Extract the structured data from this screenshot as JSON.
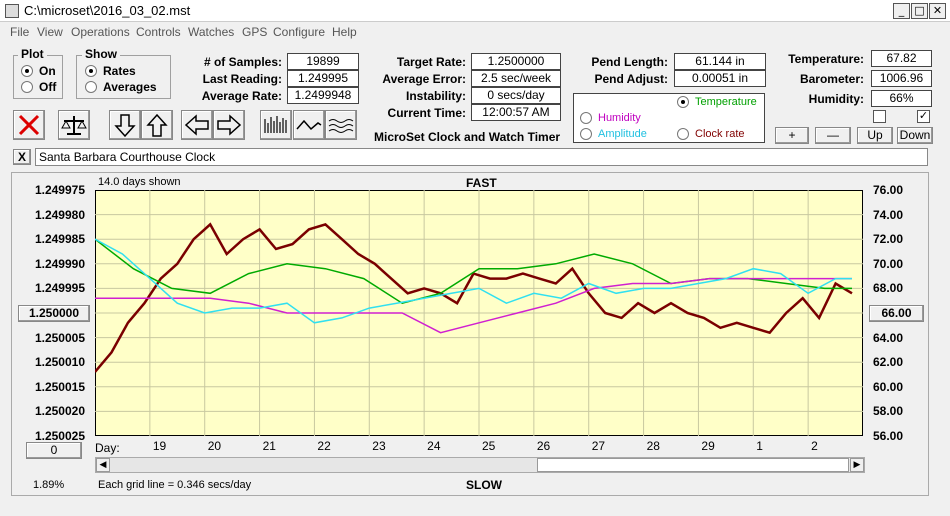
{
  "window": {
    "title": "C:\\microset\\2016_03_02.mst"
  },
  "menu": [
    "File",
    "View",
    "Operations",
    "Controls",
    "Watches",
    "GPS",
    "Configure",
    "Help"
  ],
  "plot_group": {
    "title": "Plot",
    "on": "On",
    "off": "Off",
    "selected": "On"
  },
  "show_group": {
    "title": "Show",
    "rates": "Rates",
    "averages": "Averages",
    "selected": "Rates"
  },
  "stats": {
    "samples_label": "# of Samples:",
    "samples": "19899",
    "last_label": "Last Reading:",
    "last": "1.249995",
    "avg_label": "Average Rate:",
    "avg": "1.2499948"
  },
  "rates": {
    "target_label": "Target Rate:",
    "target": "1.2500000",
    "error_label": "Average Error:",
    "error": "2.5 sec/week",
    "instab_label": "Instability:",
    "instab": "0 secs/day",
    "time_label": "Current Time:",
    "time": "12:00:57 AM"
  },
  "app_name": "MicroSet Clock and Watch Timer",
  "pendulum": {
    "length_label": "Pend Length:",
    "length": "61.144 in",
    "adjust_label": "Pend Adjust:",
    "adjust": "0.00051 in"
  },
  "sensor_select": {
    "temperature": "Temperature",
    "humidity": "Humidity",
    "amplitude": "Amplitude",
    "clock_rate": "Clock rate",
    "selected": "Temperature"
  },
  "environment": {
    "temp_label": "Temperature:",
    "temp": "67.82",
    "baro_label": "Barometer:",
    "baro": "1006.96",
    "hum_label": "Humidity:",
    "hum": "66%",
    "chk1": false,
    "chk2": true
  },
  "adjust_buttons": {
    "plus": "+",
    "minus": "—",
    "up": "Up",
    "down": "Down"
  },
  "clock_name": "Santa Barbara Courthouse Clock",
  "close_x": "X",
  "plot": {
    "days_shown": "14.0 days shown",
    "fast": "FAST",
    "slow": "SLOW",
    "grid_note": "Each grid line = 0.346 secs/day",
    "percent": "1.89%",
    "center_btn": "1.250000",
    "right_btn": "66.00",
    "bottom_btn": "0",
    "day_label": "Day:",
    "colors": {
      "bg": "#ffffc8",
      "rate": "#7a0000",
      "temp": "#00aa00",
      "humidity": "#d020d0",
      "amplitude": "#30e0f0",
      "grid": "#c8c8a0"
    }
  },
  "chart_data": {
    "type": "line",
    "x_ticks": [
      "19",
      "20",
      "21",
      "22",
      "23",
      "24",
      "25",
      "26",
      "27",
      "28",
      "29",
      "1",
      "2"
    ],
    "y_left_ticks": [
      "1.249975",
      "1.249980",
      "1.249985",
      "1.249990",
      "1.249995",
      "1.250000",
      "1.250005",
      "1.250010",
      "1.250015",
      "1.250020",
      "1.250025"
    ],
    "y_left_range": [
      1.250025,
      1.249975
    ],
    "y_right_ticks": [
      "76.00",
      "74.00",
      "72.00",
      "70.00",
      "68.00",
      "66.00",
      "64.00",
      "62.00",
      "60.00",
      "58.00",
      "56.00"
    ],
    "y_right_range": [
      56,
      76
    ],
    "x_range": [
      0,
      14
    ],
    "series": [
      {
        "color": "#7a0000",
        "axis": "left",
        "x": [
          0,
          0.3,
          0.6,
          0.9,
          1.2,
          1.5,
          1.8,
          2.1,
          2.4,
          2.7,
          3.0,
          3.3,
          3.6,
          3.9,
          4.2,
          4.5,
          4.8,
          5.1,
          5.4,
          5.7,
          6.0,
          6.3,
          6.6,
          6.9,
          7.2,
          7.5,
          7.8,
          8.1,
          8.4,
          8.7,
          9.0,
          9.3,
          9.6,
          9.9,
          10.2,
          10.5,
          10.8,
          11.1,
          11.4,
          11.7,
          12.0,
          12.3,
          12.6,
          12.9,
          13.2,
          13.5,
          13.8
        ],
        "y": [
          1.250012,
          1.250008,
          1.250002,
          1.249998,
          1.249993,
          1.24999,
          1.249985,
          1.249982,
          1.249988,
          1.249985,
          1.249983,
          1.249987,
          1.249986,
          1.249983,
          1.249982,
          1.249985,
          1.249988,
          1.24999,
          1.249993,
          1.249996,
          1.249995,
          1.249996,
          1.249998,
          1.249992,
          1.249993,
          1.249993,
          1.249992,
          1.249993,
          1.249994,
          1.249991,
          1.249996,
          1.25,
          1.250001,
          1.249998,
          1.25,
          1.249998,
          1.25,
          1.250001,
          1.250003,
          1.250002,
          1.250003,
          1.250004,
          1.25,
          1.249997,
          1.250001,
          1.249994,
          1.249996
        ]
      },
      {
        "color": "#00aa00",
        "axis": "left",
        "x": [
          0,
          0.7,
          1.4,
          2.1,
          2.8,
          3.5,
          4.2,
          4.9,
          5.6,
          6.3,
          7.0,
          7.7,
          8.4,
          9.1,
          9.8,
          10.5,
          11.2,
          11.9,
          12.6,
          13.3,
          13.8
        ],
        "y": [
          1.249985,
          1.249991,
          1.249995,
          1.249996,
          1.249992,
          1.24999,
          1.249991,
          1.249993,
          1.249998,
          1.249996,
          1.249991,
          1.249991,
          1.24999,
          1.249988,
          1.24999,
          1.249994,
          1.249993,
          1.249993,
          1.249994,
          1.249995,
          1.249995
        ]
      },
      {
        "color": "#d020d0",
        "axis": "left",
        "x": [
          0,
          0.7,
          1.4,
          2.1,
          2.8,
          3.5,
          4.2,
          4.9,
          5.6,
          6.3,
          7.0,
          7.7,
          8.4,
          9.1,
          9.8,
          10.5,
          11.2,
          11.9,
          12.6,
          13.3,
          13.8
        ],
        "y": [
          1.249997,
          1.249997,
          1.249997,
          1.249997,
          1.249998,
          1.25,
          1.25,
          1.25,
          1.25,
          1.250004,
          1.250002,
          1.25,
          1.249998,
          1.249995,
          1.249994,
          1.249994,
          1.249993,
          1.249993,
          1.249993,
          1.249993,
          1.249993
        ]
      },
      {
        "color": "#30e0f0",
        "axis": "left",
        "x": [
          0,
          0.5,
          1.0,
          1.5,
          2.0,
          2.5,
          3.0,
          3.5,
          4.0,
          4.5,
          5.0,
          5.5,
          6.0,
          6.5,
          7.0,
          7.5,
          8.0,
          8.5,
          9.0,
          9.5,
          10.0,
          10.5,
          11.0,
          11.5,
          12.0,
          12.5,
          13.0,
          13.5,
          13.8
        ],
        "y": [
          1.249985,
          1.249988,
          1.249993,
          1.249998,
          1.25,
          1.249999,
          1.249999,
          1.249998,
          1.250002,
          1.250001,
          1.249999,
          1.249998,
          1.249997,
          1.249996,
          1.249995,
          1.249998,
          1.249996,
          1.249997,
          1.249994,
          1.249996,
          1.249995,
          1.249995,
          1.249994,
          1.249993,
          1.249991,
          1.249992,
          1.249996,
          1.249993,
          1.249993
        ]
      }
    ]
  }
}
